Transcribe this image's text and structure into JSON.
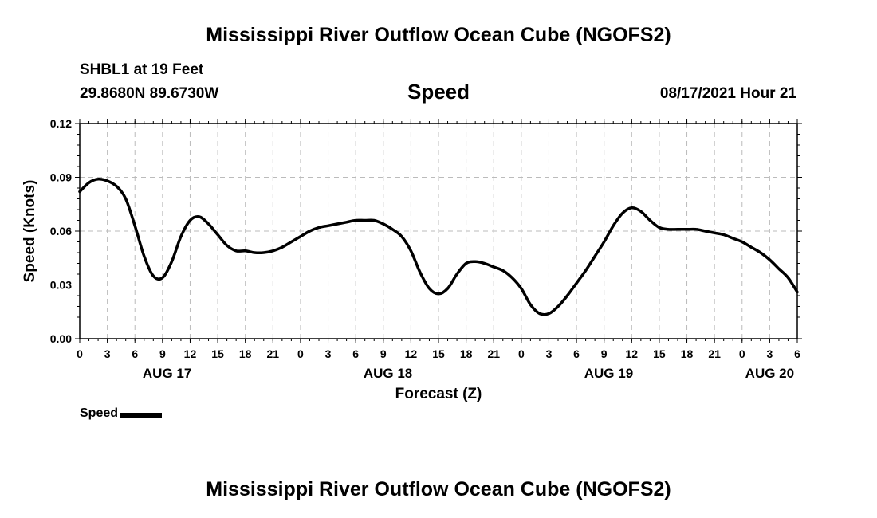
{
  "header": {
    "title": "Mississippi River Outflow Ocean Cube (NGOFS2)",
    "station": "SHBL1 at 19 Feet",
    "coordinates": "29.8680N  89.6730W",
    "variable": "Speed",
    "timestamp": "08/17/2021 Hour 21"
  },
  "footer": {
    "title": "Mississippi River Outflow Ocean Cube (NGOFS2)"
  },
  "legend": {
    "label": "Speed"
  },
  "chart_data": {
    "type": "line",
    "title": "Speed",
    "xlabel": "Forecast (Z)",
    "ylabel": "Speed (Knots)",
    "xlim": [
      0,
      78
    ],
    "ylim": [
      0,
      0.12
    ],
    "grid": true,
    "x_unit": "hours since Aug 17 00Z",
    "yticks": [
      "0.00",
      "0.03",
      "0.06",
      "0.09",
      "0.12"
    ],
    "xticks": [
      "0",
      "3",
      "6",
      "9",
      "12",
      "15",
      "18",
      "21",
      "0",
      "3",
      "6",
      "9",
      "12",
      "15",
      "18",
      "21",
      "0",
      "3",
      "6",
      "9",
      "12",
      "15",
      "18",
      "21",
      "0",
      "3",
      "6"
    ],
    "date_labels": [
      {
        "label": "AUG 17",
        "x": 9.5
      },
      {
        "label": "AUG 18",
        "x": 33.5
      },
      {
        "label": "AUG 19",
        "x": 57.5
      },
      {
        "label": "AUG 20",
        "x": 75
      }
    ],
    "series": [
      {
        "name": "Speed",
        "color": "#000000",
        "x": [
          0,
          1,
          2,
          3,
          4,
          5,
          6,
          7,
          8,
          9,
          10,
          11,
          12,
          13,
          14,
          15,
          16,
          17,
          18,
          19,
          20,
          21,
          22,
          23,
          24,
          25,
          26,
          27,
          28,
          29,
          30,
          31,
          32,
          33,
          34,
          35,
          36,
          37,
          38,
          39,
          40,
          41,
          42,
          43,
          44,
          45,
          46,
          47,
          48,
          49,
          50,
          51,
          52,
          53,
          54,
          55,
          56,
          57,
          58,
          59,
          60,
          61,
          62,
          63,
          64,
          65,
          66,
          67,
          68,
          69,
          70,
          71,
          72,
          73,
          74,
          75,
          76,
          77,
          78
        ],
        "values": [
          0.082,
          0.087,
          0.089,
          0.088,
          0.085,
          0.078,
          0.063,
          0.046,
          0.035,
          0.034,
          0.043,
          0.057,
          0.066,
          0.068,
          0.064,
          0.058,
          0.052,
          0.049,
          0.049,
          0.048,
          0.048,
          0.049,
          0.051,
          0.054,
          0.057,
          0.06,
          0.062,
          0.063,
          0.064,
          0.065,
          0.066,
          0.066,
          0.066,
          0.064,
          0.061,
          0.057,
          0.049,
          0.037,
          0.028,
          0.025,
          0.028,
          0.036,
          0.042,
          0.043,
          0.042,
          0.04,
          0.038,
          0.034,
          0.028,
          0.019,
          0.014,
          0.014,
          0.018,
          0.024,
          0.031,
          0.038,
          0.046,
          0.054,
          0.063,
          0.07,
          0.073,
          0.071,
          0.066,
          0.062,
          0.061,
          0.061,
          0.061,
          0.061,
          0.06,
          0.059,
          0.058,
          0.056,
          0.054,
          0.051,
          0.048,
          0.044,
          0.039,
          0.034,
          0.026
        ]
      }
    ]
  }
}
